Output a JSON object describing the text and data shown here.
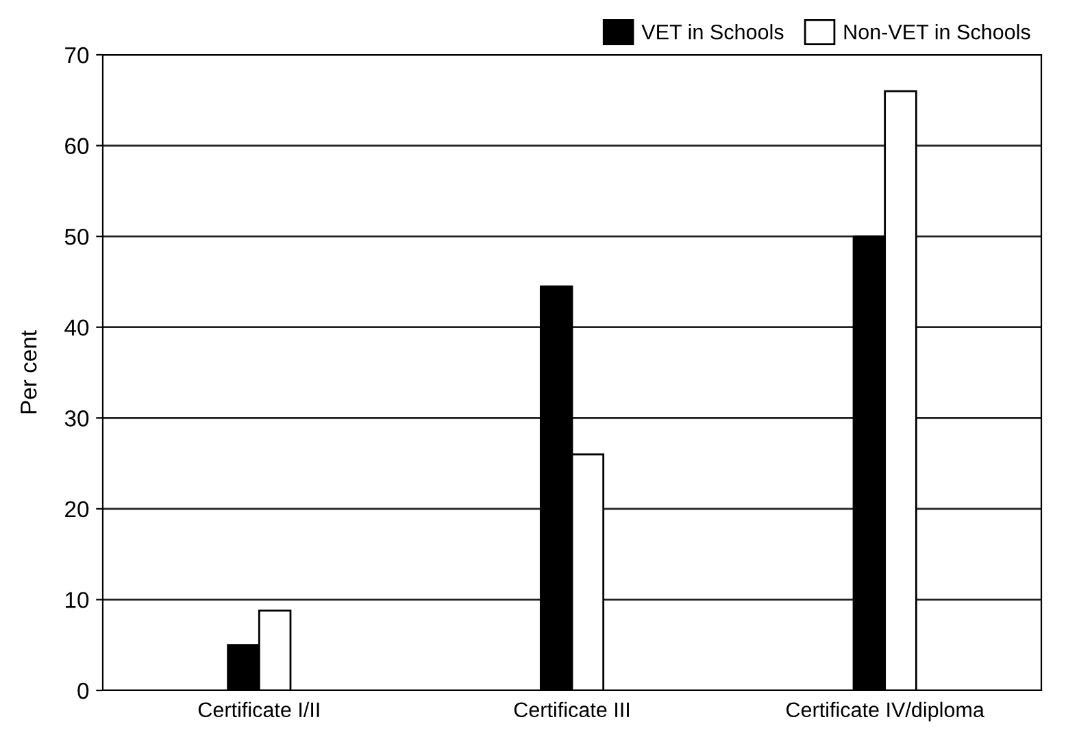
{
  "chart_data": {
    "type": "bar",
    "ylabel": "Per cent",
    "categories": [
      "Certificate I/II",
      "Certificate III",
      "Certificate IV/diploma"
    ],
    "series": [
      {
        "name": "VET in Schools",
        "color": "#000000",
        "values": [
          5,
          44.5,
          50
        ]
      },
      {
        "name": "Non-VET in Schools",
        "color": "#ffffff",
        "values": [
          8.8,
          26,
          66
        ]
      }
    ],
    "ylim": [
      0,
      70
    ],
    "yticks": [
      0,
      10,
      20,
      30,
      40,
      50,
      60,
      70
    ],
    "grid": "y",
    "legend": "top right"
  }
}
